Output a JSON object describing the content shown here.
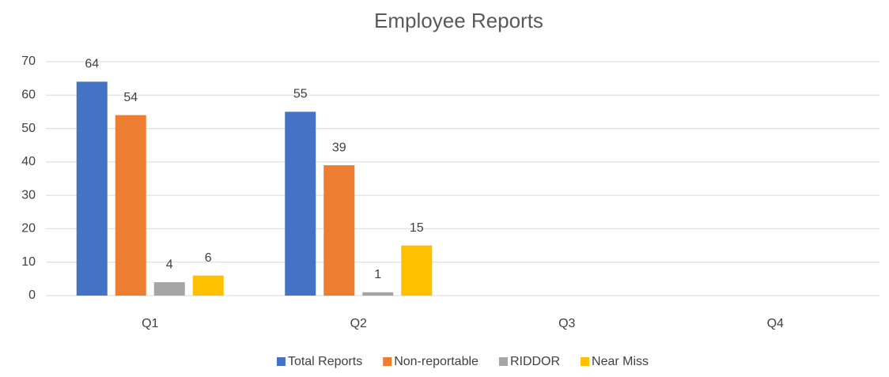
{
  "chart_data": {
    "type": "bar",
    "title": "Employee Reports",
    "categories": [
      "Q1",
      "Q2",
      "Q3",
      "Q4"
    ],
    "series": [
      {
        "name": "Total Reports",
        "color": "#4472c4",
        "values": [
          64,
          55,
          null,
          null
        ]
      },
      {
        "name": "Non-reportable",
        "color": "#ed7d31",
        "values": [
          54,
          39,
          null,
          null
        ]
      },
      {
        "name": "RIDDOR",
        "color": "#a5a5a5",
        "values": [
          4,
          1,
          null,
          null
        ]
      },
      {
        "name": "Near Miss",
        "color": "#ffc000",
        "values": [
          6,
          15,
          null,
          null
        ]
      }
    ],
    "ylim": [
      0,
      70
    ],
    "yticks": [
      0,
      10,
      20,
      30,
      40,
      50,
      60,
      70
    ],
    "grid": true,
    "legend": "bottom"
  }
}
